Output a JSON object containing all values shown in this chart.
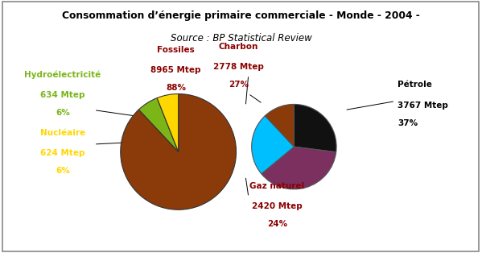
{
  "title_line1": "Consommation d’énergie primaire commerciale - Monde - 2004 -",
  "title_line2": "Source : BP Statistical Review",
  "left_pie": {
    "values": [
      88,
      6,
      6
    ],
    "colors": [
      "#8B3A0A",
      "#7CB518",
      "#FFD700"
    ],
    "startangle": 90
  },
  "right_pie": {
    "values": [
      27,
      37,
      24,
      12
    ],
    "colors": [
      "#111111",
      "#7B3060",
      "#00BFFF",
      "#8B3A0A"
    ],
    "startangle": 90
  },
  "bg_color": "#FFFFFF",
  "fossiles_color": "#8B0000",
  "hydro_color": "#7CB518",
  "nucleaire_color": "#FFD700",
  "charbon_color": "#8B0000",
  "petrole_color": "#000000",
  "gaznaturel_color": "#8B0000"
}
